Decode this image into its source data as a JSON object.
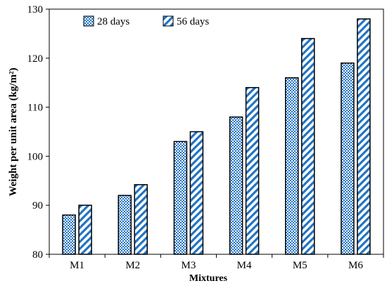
{
  "chart_data": {
    "type": "bar",
    "xlabel": "Mixtures",
    "ylabel": "Weight per unit area (kg/m²)",
    "ylim": [
      80,
      130
    ],
    "yticks": [
      80,
      90,
      100,
      110,
      120,
      130
    ],
    "categories": [
      "M1",
      "M2",
      "M3",
      "M4",
      "M5",
      "M6"
    ],
    "series": [
      {
        "name": "28 days",
        "values": [
          88,
          92,
          103,
          108,
          116,
          119
        ],
        "pattern": "dots"
      },
      {
        "name": "56 days",
        "values": [
          90,
          94.2,
          105,
          114,
          124,
          128
        ],
        "pattern": "diagonal-stripes"
      }
    ],
    "grid": false,
    "legend_position": "top-left",
    "colors": {
      "accent": "#1f73c6",
      "outline": "#000000"
    }
  }
}
